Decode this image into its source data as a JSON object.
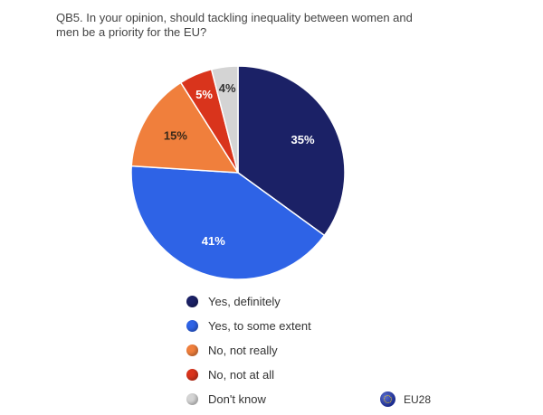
{
  "title": "QB5. In your opinion, should tackling inequality between women and men be a priority for the EU?",
  "region_label": "EU28",
  "region_icon": "eu-flag-icon",
  "chart_data": {
    "type": "pie",
    "title": "QB5. In your opinion, should tackling inequality between women and men be a priority for the EU?",
    "unit": "%",
    "legend_position": "bottom",
    "slices": [
      {
        "label": "Yes, definitely",
        "value": 35,
        "display": "35%",
        "color": "#1b2166",
        "text_color": "#ffffff"
      },
      {
        "label": "Yes, to some extent",
        "value": 41,
        "display": "41%",
        "color": "#2e63e6",
        "text_color": "#ffffff"
      },
      {
        "label": "No, not really",
        "value": 15,
        "display": "15%",
        "color": "#f07f3c",
        "text_color": "#3a2a1a"
      },
      {
        "label": "No, not at all",
        "value": 5,
        "display": "5%",
        "color": "#d9341c",
        "text_color": "#ffffff"
      },
      {
        "label": "Don't know",
        "value": 4,
        "display": "4%",
        "color": "#d4d4d4",
        "text_color": "#333333"
      }
    ]
  }
}
